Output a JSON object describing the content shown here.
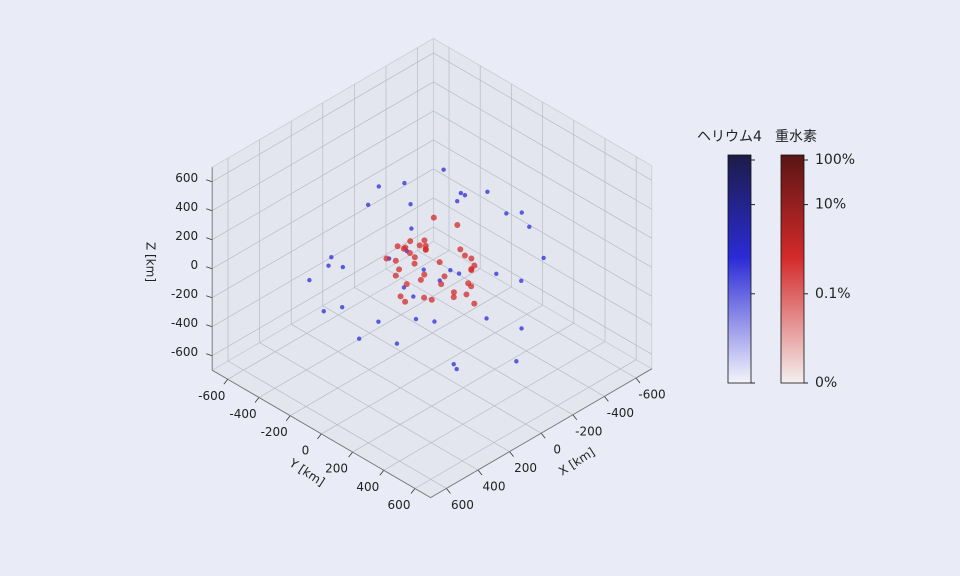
{
  "chart_data": {
    "type": "scatter3d",
    "xlabel": "X [km]",
    "ylabel": "Y [km]",
    "zlabel": "Z [km]",
    "xlim": [
      -700,
      700
    ],
    "ylim": [
      -700,
      700
    ],
    "zlim": [
      -700,
      700
    ],
    "xticks": [
      -600,
      -400,
      -200,
      0,
      200,
      400,
      600
    ],
    "yticks": [
      -600,
      -400,
      -200,
      0,
      200,
      400,
      600
    ],
    "zticks": [
      -600,
      -400,
      -200,
      0,
      200,
      400,
      600
    ],
    "grid": true,
    "series": [
      {
        "name": "ヘリウム4",
        "color": "#2b2bd6",
        "x": [
          -420,
          310,
          -150,
          520,
          80,
          -260,
          190,
          -380,
          450,
          -60,
          240,
          -500,
          120,
          -310,
          360,
          -200,
          30,
          410,
          -90,
          280,
          -440,
          150,
          -30,
          330,
          -240,
          60,
          -350,
          210,
          -120,
          470,
          -10,
          -180,
          90,
          260,
          -280,
          380,
          -70,
          140,
          -400,
          20
        ],
        "y": [
          150,
          -380,
          420,
          60,
          -260,
          -90,
          310,
          -200,
          -120,
          480,
          190,
          -30,
          -450,
          260,
          90,
          -340,
          380,
          -230,
          120,
          -60,
          270,
          20,
          -150,
          350,
          -420,
          200,
          -280,
          110,
          40,
          -310,
          -190,
          230,
          -70,
          -400,
          340,
          160,
          -480,
          300,
          -50,
          70
        ],
        "z": [
          210,
          -340,
          80,
          -120,
          450,
          -260,
          300,
          150,
          -60,
          -380,
          260,
          40,
          -200,
          -450,
          350,
          100,
          -90,
          190,
          520,
          -230,
          -40,
          380,
          -310,
          60,
          170,
          -500,
          280,
          -150,
          410,
          20,
          -260,
          -10,
          130,
          -70,
          320,
          -180,
          90,
          -420,
          240,
          -30
        ]
      },
      {
        "name": "重水素",
        "color": "#d42a2a",
        "x": [
          -120,
          80,
          150,
          -60,
          20,
          -180,
          110,
          -30,
          60,
          -140,
          170,
          -90,
          40,
          -10,
          130,
          -160,
          90,
          -50,
          0,
          190,
          -110,
          70,
          -200,
          30,
          120,
          -70,
          160,
          -20,
          50,
          -130,
          100,
          -40,
          10,
          -190,
          140,
          -80,
          60,
          -150,
          180,
          -100
        ],
        "y": [
          60,
          -130,
          40,
          160,
          -90,
          -20,
          110,
          -170,
          10,
          130,
          -60,
          180,
          -140,
          70,
          -10,
          90,
          150,
          -100,
          -40,
          20,
          -160,
          120,
          50,
          -190,
          -80,
          140,
          0,
          -60,
          190,
          -120,
          30,
          100,
          -30,
          60,
          -150,
          170,
          -110,
          80,
          -50,
          -180
        ],
        "z": [
          90,
          -40,
          150,
          -120,
          30,
          170,
          -80,
          60,
          -160,
          10,
          120,
          -190,
          70,
          -20,
          180,
          -60,
          40,
          -140,
          100,
          -100,
          20,
          160,
          -30,
          50,
          -170,
          130,
          -10,
          80,
          -50,
          190,
          0,
          -130,
          140,
          -90,
          60,
          -70,
          110,
          -150,
          30,
          -20
        ]
      }
    ],
    "colorbar": {
      "scale": "symlog",
      "linthresh": 0.01,
      "lim": [
        0,
        100
      ],
      "ticks": [
        {
          "value": 100,
          "label": "100%"
        },
        {
          "value": 10,
          "label": "10%"
        },
        {
          "value": 0.1,
          "label": "0.1%"
        },
        {
          "value": 0,
          "label": "0%"
        }
      ]
    }
  }
}
